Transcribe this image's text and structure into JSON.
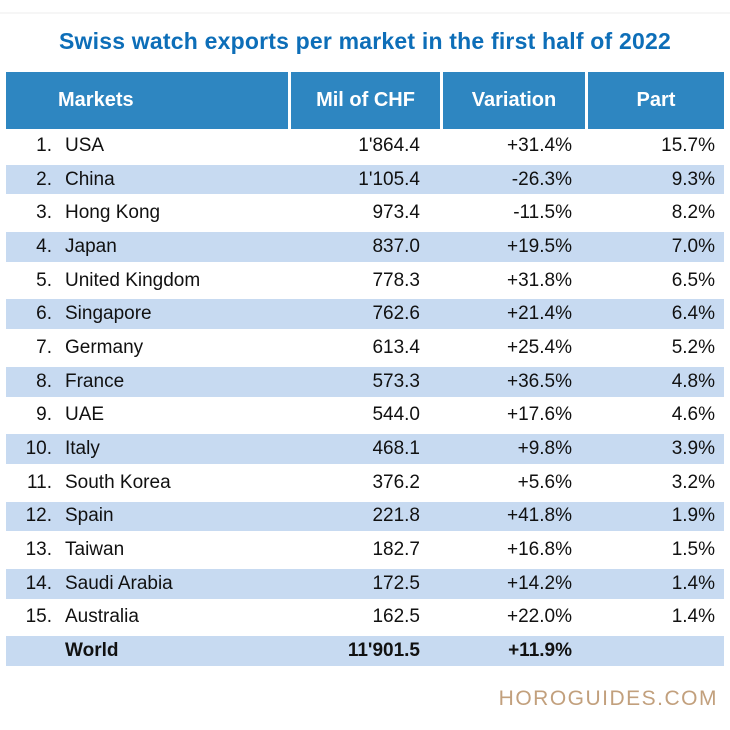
{
  "title": "Swiss watch exports per market in the first half of 2022",
  "branding": "HOROGUIDES.COM",
  "colors": {
    "title": "#0D6EB8",
    "header_bg": "#2E86C1",
    "row_stripe": "#C7DAF1",
    "brand": "#C2A07D",
    "text": "#111111"
  },
  "chart_data": {
    "type": "table",
    "title": "Swiss watch exports per market in the first half of 2022",
    "columns": [
      "Markets",
      "Mil of CHF",
      "Variation",
      "Part"
    ],
    "rows": [
      {
        "rank": "1.",
        "market": "USA",
        "chf": "1'864.4",
        "variation": "+31.4%",
        "part": "15.7%"
      },
      {
        "rank": "2.",
        "market": "China",
        "chf": "1'105.4",
        "variation": "-26.3%",
        "part": "9.3%"
      },
      {
        "rank": "3.",
        "market": "Hong Kong",
        "chf": "973.4",
        "variation": "-11.5%",
        "part": "8.2%"
      },
      {
        "rank": "4.",
        "market": "Japan",
        "chf": "837.0",
        "variation": "+19.5%",
        "part": "7.0%"
      },
      {
        "rank": "5.",
        "market": "United Kingdom",
        "chf": "778.3",
        "variation": "+31.8%",
        "part": "6.5%"
      },
      {
        "rank": "6.",
        "market": "Singapore",
        "chf": "762.6",
        "variation": "+21.4%",
        "part": "6.4%"
      },
      {
        "rank": "7.",
        "market": "Germany",
        "chf": "613.4",
        "variation": "+25.4%",
        "part": "5.2%"
      },
      {
        "rank": "8.",
        "market": "France",
        "chf": "573.3",
        "variation": "+36.5%",
        "part": "4.8%"
      },
      {
        "rank": "9.",
        "market": "UAE",
        "chf": "544.0",
        "variation": "+17.6%",
        "part": "4.6%"
      },
      {
        "rank": "10.",
        "market": "Italy",
        "chf": "468.1",
        "variation": "+9.8%",
        "part": "3.9%"
      },
      {
        "rank": "11.",
        "market": "South Korea",
        "chf": "376.2",
        "variation": "+5.6%",
        "part": "3.2%"
      },
      {
        "rank": "12.",
        "market": "Spain",
        "chf": "221.8",
        "variation": "+41.8%",
        "part": "1.9%"
      },
      {
        "rank": "13.",
        "market": "Taiwan",
        "chf": "182.7",
        "variation": "+16.8%",
        "part": "1.5%"
      },
      {
        "rank": "14.",
        "market": "Saudi Arabia",
        "chf": "172.5",
        "variation": "+14.2%",
        "part": "1.4%"
      },
      {
        "rank": "15.",
        "market": "Australia",
        "chf": "162.5",
        "variation": "+22.0%",
        "part": "1.4%"
      }
    ],
    "world": {
      "rank": "",
      "market": "World",
      "chf": "11'901.5",
      "variation": "+11.9%",
      "part": ""
    },
    "numeric": {
      "markets": [
        "USA",
        "China",
        "Hong Kong",
        "Japan",
        "United Kingdom",
        "Singapore",
        "Germany",
        "France",
        "UAE",
        "Italy",
        "South Korea",
        "Spain",
        "Taiwan",
        "Saudi Arabia",
        "Australia"
      ],
      "mil_of_chf": [
        1864.4,
        1105.4,
        973.4,
        837.0,
        778.3,
        762.6,
        613.4,
        573.3,
        544.0,
        468.1,
        376.2,
        221.8,
        182.7,
        172.5,
        162.5
      ],
      "variation_pct": [
        31.4,
        -26.3,
        -11.5,
        19.5,
        31.8,
        21.4,
        25.4,
        36.5,
        17.6,
        9.8,
        5.6,
        41.8,
        16.8,
        14.2,
        22.0
      ],
      "part_pct": [
        15.7,
        9.3,
        8.2,
        7.0,
        6.5,
        6.4,
        5.2,
        4.8,
        4.6,
        3.9,
        3.2,
        1.9,
        1.5,
        1.4,
        1.4
      ],
      "world_total": {
        "mil_of_chf": 11901.5,
        "variation_pct": 11.9
      }
    }
  }
}
